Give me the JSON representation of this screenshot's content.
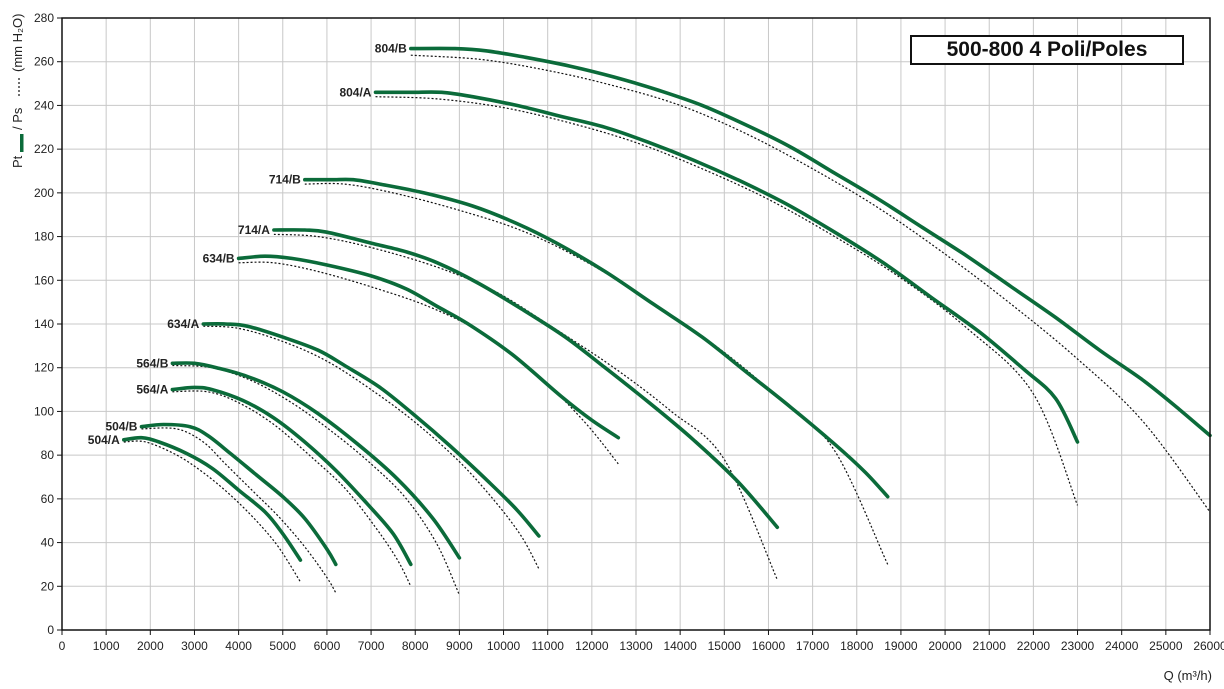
{
  "chart_data": {
    "type": "line",
    "title": "500-800 4 Poli/Poles",
    "xlabel": "Q (m³/h)",
    "ylabel": {
      "total": "Pt",
      "static": "/ Ps",
      "unit": "(mm H₂O)"
    },
    "xlim": [
      0,
      26000
    ],
    "ylim": [
      0,
      280
    ],
    "xticks": [
      0,
      1000,
      2000,
      3000,
      4000,
      5000,
      6000,
      7000,
      8000,
      9000,
      10000,
      11000,
      12000,
      13000,
      14000,
      15000,
      16000,
      17000,
      18000,
      19000,
      20000,
      21000,
      22000,
      23000,
      24000,
      25000,
      26000
    ],
    "yticks": [
      0,
      20,
      40,
      60,
      80,
      100,
      120,
      140,
      160,
      180,
      200,
      220,
      240,
      260,
      280
    ],
    "grid": true,
    "colors": {
      "pt": "#0b6b3a",
      "ps": "#111111"
    },
    "series": [
      {
        "name": "504/A",
        "pt": [
          [
            1400,
            87
          ],
          [
            1800,
            88
          ],
          [
            2200,
            86
          ],
          [
            2800,
            81
          ],
          [
            3400,
            74
          ],
          [
            4000,
            64
          ],
          [
            4600,
            54
          ],
          [
            5000,
            44
          ],
          [
            5400,
            32
          ]
        ],
        "ps": [
          [
            1400,
            86
          ],
          [
            1900,
            86
          ],
          [
            2600,
            80
          ],
          [
            3200,
            72
          ],
          [
            3800,
            62
          ],
          [
            4400,
            50
          ],
          [
            4900,
            38
          ],
          [
            5400,
            22
          ]
        ]
      },
      {
        "name": "504/B",
        "pt": [
          [
            1800,
            93
          ],
          [
            2300,
            94
          ],
          [
            2900,
            93
          ],
          [
            3300,
            89
          ],
          [
            3800,
            81
          ],
          [
            4400,
            71
          ],
          [
            5000,
            61
          ],
          [
            5500,
            51
          ],
          [
            6000,
            37
          ],
          [
            6200,
            30
          ]
        ],
        "ps": [
          [
            1800,
            92
          ],
          [
            2600,
            92
          ],
          [
            3200,
            86
          ],
          [
            3700,
            76
          ],
          [
            4300,
            64
          ],
          [
            4900,
            52
          ],
          [
            5500,
            38
          ],
          [
            6000,
            24
          ],
          [
            6200,
            17
          ]
        ]
      },
      {
        "name": "564/A",
        "pt": [
          [
            2500,
            110
          ],
          [
            3000,
            111
          ],
          [
            3400,
            110
          ],
          [
            4100,
            105
          ],
          [
            4800,
            97
          ],
          [
            5500,
            86
          ],
          [
            6200,
            73
          ],
          [
            6900,
            58
          ],
          [
            7500,
            44
          ],
          [
            7900,
            30
          ]
        ],
        "ps": [
          [
            2500,
            109
          ],
          [
            3300,
            109
          ],
          [
            4000,
            104
          ],
          [
            4800,
            94
          ],
          [
            5600,
            80
          ],
          [
            6400,
            65
          ],
          [
            7100,
            47
          ],
          [
            7600,
            32
          ],
          [
            7900,
            20
          ]
        ]
      },
      {
        "name": "564/B",
        "pt": [
          [
            2500,
            122
          ],
          [
            3000,
            122
          ],
          [
            3500,
            120
          ],
          [
            4200,
            116
          ],
          [
            5000,
            109
          ],
          [
            5800,
            99
          ],
          [
            6700,
            85
          ],
          [
            7600,
            69
          ],
          [
            8400,
            51
          ],
          [
            9000,
            33
          ]
        ],
        "ps": [
          [
            2500,
            121
          ],
          [
            3400,
            120
          ],
          [
            4300,
            114
          ],
          [
            5200,
            104
          ],
          [
            6100,
            91
          ],
          [
            7000,
            76
          ],
          [
            7800,
            60
          ],
          [
            8500,
            39
          ],
          [
            9000,
            16
          ]
        ]
      },
      {
        "name": "634/A",
        "pt": [
          [
            3200,
            140
          ],
          [
            3700,
            140
          ],
          [
            4200,
            139
          ],
          [
            5000,
            134
          ],
          [
            5800,
            128
          ],
          [
            6400,
            121
          ],
          [
            7200,
            111
          ],
          [
            8000,
            98
          ],
          [
            8800,
            84
          ],
          [
            9600,
            69
          ],
          [
            10300,
            55
          ],
          [
            10800,
            43
          ]
        ],
        "ps": [
          [
            3200,
            139
          ],
          [
            4000,
            138
          ],
          [
            5000,
            132
          ],
          [
            6000,
            123
          ],
          [
            7000,
            110
          ],
          [
            8000,
            95
          ],
          [
            9000,
            77
          ],
          [
            9800,
            59
          ],
          [
            10400,
            43
          ],
          [
            10800,
            28
          ]
        ]
      },
      {
        "name": "634/B",
        "pt": [
          [
            4000,
            170
          ],
          [
            4600,
            171
          ],
          [
            5200,
            170
          ],
          [
            6000,
            167
          ],
          [
            7000,
            162
          ],
          [
            7800,
            156
          ],
          [
            8500,
            148
          ],
          [
            9200,
            140
          ],
          [
            10200,
            126
          ],
          [
            11300,
            107
          ],
          [
            12000,
            96
          ],
          [
            12600,
            88
          ]
        ],
        "ps": [
          [
            4000,
            168
          ],
          [
            4800,
            168
          ],
          [
            5800,
            164
          ],
          [
            7000,
            157
          ],
          [
            8300,
            148
          ],
          [
            9500,
            136
          ],
          [
            10700,
            118
          ],
          [
            11800,
            96
          ],
          [
            12600,
            76
          ]
        ]
      },
      {
        "name": "714/A",
        "pt": [
          [
            4800,
            183
          ],
          [
            5500,
            183
          ],
          [
            6000,
            182
          ],
          [
            7000,
            177
          ],
          [
            7800,
            173
          ],
          [
            8500,
            168
          ],
          [
            9400,
            159
          ],
          [
            10400,
            147
          ],
          [
            11400,
            134
          ],
          [
            12300,
            120
          ],
          [
            13300,
            104
          ],
          [
            14300,
            87
          ],
          [
            15300,
            68
          ],
          [
            16200,
            47
          ]
        ],
        "ps": [
          [
            4800,
            181
          ],
          [
            5800,
            180
          ],
          [
            7000,
            175
          ],
          [
            8500,
            166
          ],
          [
            9800,
            155
          ],
          [
            11000,
            140
          ],
          [
            12500,
            120
          ],
          [
            13800,
            100
          ],
          [
            15000,
            78
          ],
          [
            16200,
            23
          ]
        ]
      },
      {
        "name": "714/B",
        "pt": [
          [
            5500,
            206
          ],
          [
            6100,
            206
          ],
          [
            6600,
            206
          ],
          [
            7200,
            204
          ],
          [
            8200,
            200
          ],
          [
            9300,
            194
          ],
          [
            10300,
            186
          ],
          [
            11200,
            177
          ],
          [
            12300,
            164
          ],
          [
            13400,
            149
          ],
          [
            14500,
            134
          ],
          [
            15500,
            118
          ],
          [
            16500,
            102
          ],
          [
            17500,
            85
          ],
          [
            18200,
            72
          ],
          [
            18700,
            61
          ]
        ],
        "ps": [
          [
            5500,
            204
          ],
          [
            6400,
            204
          ],
          [
            7500,
            200
          ],
          [
            9000,
            192
          ],
          [
            10500,
            182
          ],
          [
            12000,
            167
          ],
          [
            13500,
            148
          ],
          [
            15000,
            127
          ],
          [
            16300,
            105
          ],
          [
            17500,
            82
          ],
          [
            18700,
            30
          ]
        ]
      },
      {
        "name": "804/A",
        "pt": [
          [
            7100,
            246
          ],
          [
            7900,
            246
          ],
          [
            8600,
            246
          ],
          [
            9300,
            244
          ],
          [
            10300,
            240
          ],
          [
            11300,
            235
          ],
          [
            12300,
            230
          ],
          [
            13300,
            223
          ],
          [
            14300,
            215
          ],
          [
            15300,
            206
          ],
          [
            16400,
            195
          ],
          [
            17500,
            182
          ],
          [
            18600,
            168
          ],
          [
            19700,
            152
          ],
          [
            20800,
            136
          ],
          [
            21800,
            119
          ],
          [
            22500,
            106
          ],
          [
            23000,
            86
          ]
        ],
        "ps": [
          [
            7100,
            244
          ],
          [
            8500,
            243
          ],
          [
            10000,
            239
          ],
          [
            11500,
            232
          ],
          [
            13000,
            223
          ],
          [
            14500,
            211
          ],
          [
            16000,
            197
          ],
          [
            17500,
            180
          ],
          [
            19000,
            161
          ],
          [
            20500,
            138
          ],
          [
            22000,
            108
          ],
          [
            23000,
            57
          ]
        ]
      },
      {
        "name": "804/B",
        "pt": [
          [
            7900,
            266
          ],
          [
            8900,
            266
          ],
          [
            9600,
            265
          ],
          [
            10500,
            262
          ],
          [
            11500,
            258
          ],
          [
            12500,
            253
          ],
          [
            13500,
            247
          ],
          [
            14500,
            240
          ],
          [
            15500,
            231
          ],
          [
            16500,
            221
          ],
          [
            17500,
            209
          ],
          [
            18500,
            197
          ],
          [
            19500,
            184
          ],
          [
            20500,
            171
          ],
          [
            21500,
            157
          ],
          [
            22500,
            143
          ],
          [
            23500,
            128
          ],
          [
            24500,
            114
          ],
          [
            25300,
            101
          ],
          [
            26000,
            89
          ]
        ],
        "ps": [
          [
            7900,
            263
          ],
          [
            9500,
            261
          ],
          [
            11000,
            256
          ],
          [
            12500,
            249
          ],
          [
            14000,
            240
          ],
          [
            15500,
            227
          ],
          [
            17000,
            211
          ],
          [
            18500,
            193
          ],
          [
            20000,
            172
          ],
          [
            21500,
            149
          ],
          [
            23000,
            124
          ],
          [
            24500,
            95
          ],
          [
            26000,
            54
          ]
        ]
      }
    ]
  }
}
